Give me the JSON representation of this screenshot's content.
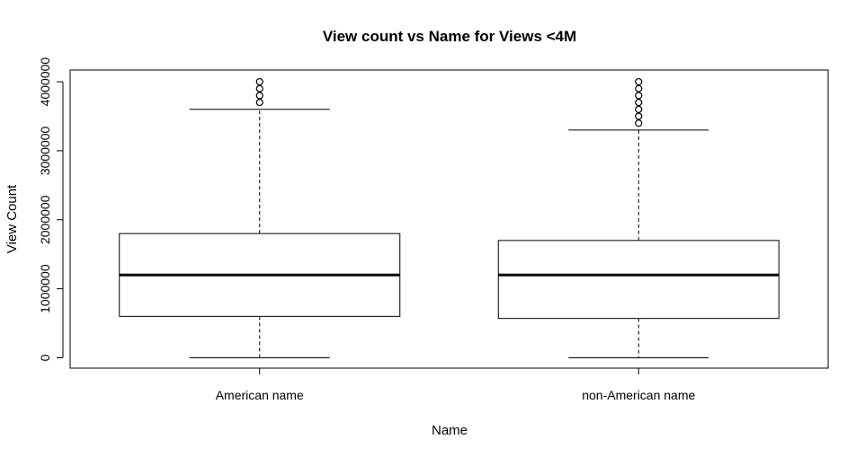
{
  "chart_data": {
    "type": "boxplot",
    "title": "View count vs Name for Views <4M",
    "xlabel": "Name",
    "ylabel": "View Count",
    "ylim": [
      -150000,
      4170000
    ],
    "yticks": [
      0,
      1000000,
      2000000,
      3000000,
      4000000
    ],
    "ytick_labels": [
      "0",
      "1000000",
      "2000000",
      "3000000",
      "4000000"
    ],
    "categories": [
      "American name",
      "non-American name"
    ],
    "boxes": [
      {
        "category": "American name",
        "whisker_low": 0,
        "q1": 600000,
        "median": 1200000,
        "q3": 1800000,
        "whisker_high": 3600000,
        "outliers": [
          3700000,
          3800000,
          3900000,
          4000000
        ]
      },
      {
        "category": "non-American name",
        "whisker_low": 0,
        "q1": 570000,
        "median": 1200000,
        "q3": 1700000,
        "whisker_high": 3300000,
        "outliers": [
          3400000,
          3500000,
          3600000,
          3700000,
          3800000,
          3900000,
          4000000
        ]
      }
    ],
    "grid": false,
    "legend": "none"
  }
}
